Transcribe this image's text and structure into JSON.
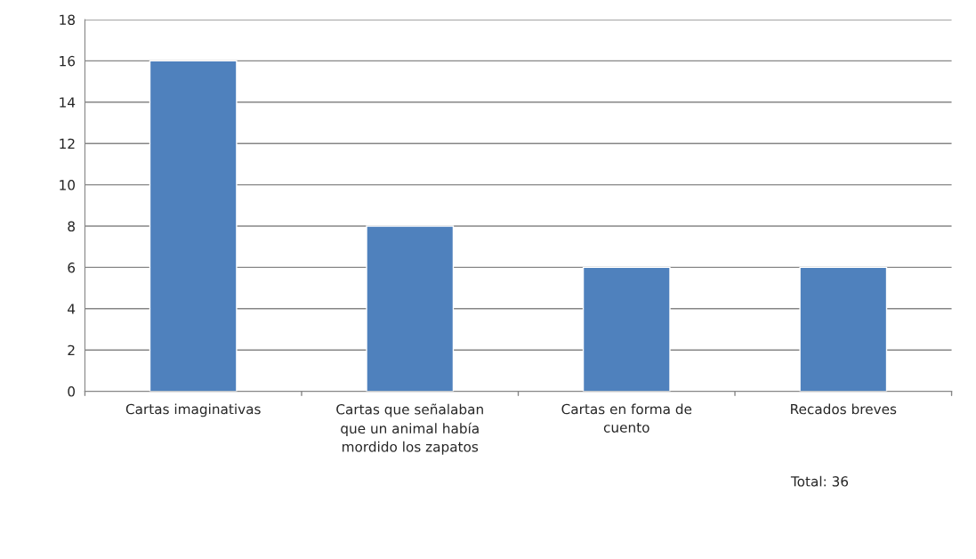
{
  "chart_data": {
    "type": "bar",
    "categories": [
      "Cartas imaginativas",
      "Cartas que señalaban\nque un animal había\nmordido los zapatos",
      "Cartas en forma de\ncuento",
      "Recados breves"
    ],
    "values": [
      16,
      8,
      6,
      6
    ],
    "color": "#4f81bd",
    "ylim": [
      0,
      18
    ],
    "yticks": [
      0,
      2,
      4,
      6,
      8,
      10,
      12,
      14,
      16,
      18
    ],
    "grid": "y",
    "annotations": [
      "Total: 36"
    ]
  }
}
